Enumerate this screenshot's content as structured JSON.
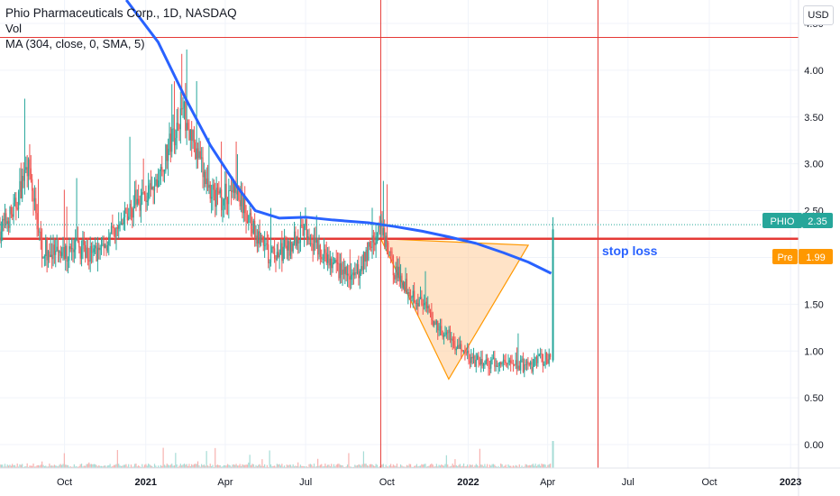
{
  "legend": {
    "title": "Phio Pharmaceuticals Corp., 1D, NASDAQ",
    "vol": "Vol",
    "ma": "MA (304, close, 0, SMA, 5)"
  },
  "currency_button": "USD",
  "labels": {
    "ticker_tag": "PHIO",
    "ticker_price": "2.35",
    "pre_tag": "Pre",
    "pre_price": "1.99",
    "stop_loss": "stop loss"
  },
  "colors": {
    "up": "#26a69a",
    "down": "#ef5350",
    "ma": "#2962ff",
    "hline": "#e53935",
    "vline": "#e53935",
    "triangle_fill": "#ffcc99",
    "triangle_stroke": "#ff9800",
    "ticker_bg": "#26a69a",
    "pre_bg": "#ff9800",
    "stop_loss_text": "#2962ff"
  },
  "chart_data": {
    "type": "candlestick",
    "y_ticks": [
      "0.00",
      "0.50",
      "1.00",
      "1.50",
      "2.00",
      "2.50",
      "3.00",
      "3.50",
      "4.00",
      "4.50"
    ],
    "x_ticks": [
      "Oct",
      "2021",
      "Apr",
      "Jul",
      "Oct",
      "2022",
      "Apr",
      "Jul",
      "Oct",
      "2023"
    ],
    "x_range": [
      "2020-07-20",
      "2023-01-10"
    ],
    "y_range": [
      -0.25,
      4.75
    ],
    "last_price": 2.35,
    "premarket_price": 1.99,
    "horizontal_lines": [
      4.35,
      2.2
    ],
    "vertical_lines": [
      "2021-09-24",
      "2022-05-28"
    ],
    "triangle": [
      [
        "2021-09-24",
        2.2
      ],
      [
        "2022-03-10",
        2.13
      ],
      [
        "2021-12-10",
        0.7
      ]
    ],
    "stop_loss_level": 2.2,
    "price_path": [
      [
        "2020-07-20",
        2.3
      ],
      [
        "2020-08-05",
        2.5
      ],
      [
        "2020-08-20",
        3.0
      ],
      [
        "2020-09-05",
        2.1
      ],
      [
        "2020-09-25",
        2.0
      ],
      [
        "2020-10-15",
        2.1
      ],
      [
        "2020-11-05",
        2.05
      ],
      [
        "2020-12-01",
        2.3
      ],
      [
        "2020-12-20",
        2.6
      ],
      [
        "2021-01-10",
        2.7
      ],
      [
        "2021-01-28",
        3.2
      ],
      [
        "2021-02-12",
        3.6
      ],
      [
        "2021-02-25",
        3.2
      ],
      [
        "2021-03-10",
        2.8
      ],
      [
        "2021-03-25",
        2.6
      ],
      [
        "2021-04-10",
        2.75
      ],
      [
        "2021-04-28",
        2.4
      ],
      [
        "2021-05-20",
        2.0
      ],
      [
        "2021-06-10",
        2.1
      ],
      [
        "2021-07-01",
        2.3
      ],
      [
        "2021-07-20",
        2.0
      ],
      [
        "2021-08-10",
        1.85
      ],
      [
        "2021-08-25",
        1.75
      ],
      [
        "2021-09-10",
        2.1
      ],
      [
        "2021-09-24",
        2.3
      ],
      [
        "2021-10-10",
        1.85
      ],
      [
        "2021-11-01",
        1.6
      ],
      [
        "2021-11-25",
        1.3
      ],
      [
        "2021-12-15",
        1.1
      ],
      [
        "2022-01-05",
        0.9
      ],
      [
        "2022-01-25",
        0.85
      ],
      [
        "2022-02-20",
        0.88
      ],
      [
        "2022-03-10",
        0.82
      ],
      [
        "2022-03-25",
        0.92
      ],
      [
        "2022-04-05",
        0.92
      ]
    ],
    "spike_candle": {
      "date": "2022-04-07",
      "open": 0.9,
      "close": 2.3,
      "low": 0.88,
      "high": 2.43
    },
    "ma_series": {
      "name": "MA (304, close, 0, SMA, 5)",
      "points": [
        [
          "2020-12-10",
          4.75
        ],
        [
          "2021-01-15",
          4.3
        ],
        [
          "2021-02-15",
          3.7
        ],
        [
          "2021-03-15",
          3.2
        ],
        [
          "2021-04-15",
          2.75
        ],
        [
          "2021-05-05",
          2.5
        ],
        [
          "2021-06-01",
          2.42
        ],
        [
          "2021-07-01",
          2.43
        ],
        [
          "2021-08-01",
          2.4
        ],
        [
          "2021-09-10",
          2.37
        ],
        [
          "2021-10-10",
          2.33
        ],
        [
          "2021-11-10",
          2.28
        ],
        [
          "2021-12-10",
          2.22
        ],
        [
          "2022-01-10",
          2.15
        ],
        [
          "2022-02-10",
          2.05
        ],
        [
          "2022-03-10",
          1.95
        ],
        [
          "2022-04-05",
          1.83
        ]
      ]
    }
  }
}
